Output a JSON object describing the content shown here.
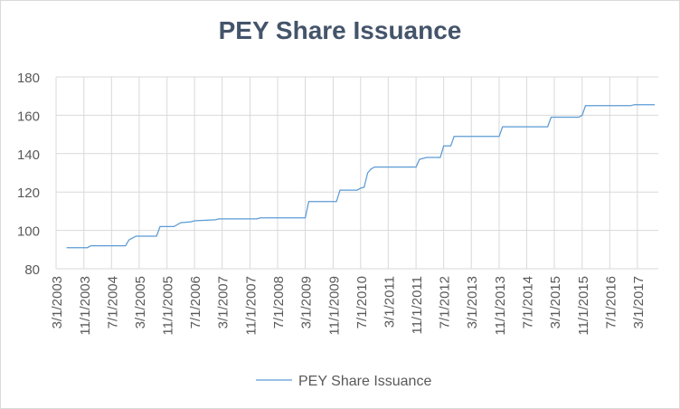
{
  "chart_data": {
    "type": "line",
    "title": "PEY Share Issuance",
    "xlabel": "",
    "ylabel": "",
    "ylim": [
      80,
      180
    ],
    "yticks": [
      80,
      100,
      120,
      140,
      160,
      180
    ],
    "x_tick_labels": [
      "3/1/2003",
      "11/1/2003",
      "7/1/2004",
      "3/1/2005",
      "11/1/2005",
      "7/1/2006",
      "3/1/2007",
      "11/1/2007",
      "7/1/2008",
      "3/1/2009",
      "11/1/2009",
      "7/1/2010",
      "3/1/2011",
      "11/1/2011",
      "7/1/2012",
      "3/1/2013",
      "11/1/2013",
      "7/1/2014",
      "3/1/2015",
      "11/1/2015",
      "7/1/2016",
      "3/1/2017"
    ],
    "grid": true,
    "legend_position": "bottom",
    "line_color": "#5b9bd5",
    "series": [
      {
        "name": "PEY Share Issuance",
        "points": [
          [
            "2003-06-01",
            91
          ],
          [
            "2003-12-01",
            91
          ],
          [
            "2004-01-01",
            92
          ],
          [
            "2004-11-01",
            92
          ],
          [
            "2004-12-01",
            95
          ],
          [
            "2005-01-01",
            96
          ],
          [
            "2005-02-01",
            97
          ],
          [
            "2005-08-01",
            97
          ],
          [
            "2005-09-01",
            102
          ],
          [
            "2006-01-01",
            102
          ],
          [
            "2006-03-01",
            104
          ],
          [
            "2006-06-01",
            104.5
          ],
          [
            "2006-07-01",
            105
          ],
          [
            "2007-01-01",
            105.5
          ],
          [
            "2007-02-01",
            106
          ],
          [
            "2008-01-01",
            106
          ],
          [
            "2008-02-01",
            106.5
          ],
          [
            "2009-03-01",
            106.5
          ],
          [
            "2009-04-01",
            115
          ],
          [
            "2009-12-01",
            115
          ],
          [
            "2010-01-01",
            121
          ],
          [
            "2010-06-01",
            121
          ],
          [
            "2010-07-01",
            122
          ],
          [
            "2010-08-01",
            122.5
          ],
          [
            "2010-09-01",
            130
          ],
          [
            "2010-10-01",
            132
          ],
          [
            "2010-11-01",
            133
          ],
          [
            "2011-11-01",
            133
          ],
          [
            "2011-12-01",
            137
          ],
          [
            "2012-02-01",
            138
          ],
          [
            "2012-06-01",
            138
          ],
          [
            "2012-07-01",
            144
          ],
          [
            "2012-09-01",
            144
          ],
          [
            "2012-10-01",
            149
          ],
          [
            "2013-11-01",
            149
          ],
          [
            "2013-12-01",
            154
          ],
          [
            "2015-01-01",
            154
          ],
          [
            "2015-02-01",
            159
          ],
          [
            "2015-10-01",
            159
          ],
          [
            "2015-11-01",
            160
          ],
          [
            "2015-12-01",
            165
          ],
          [
            "2017-01-01",
            165
          ],
          [
            "2017-02-01",
            165.5
          ],
          [
            "2017-08-01",
            165.5
          ]
        ]
      }
    ]
  }
}
